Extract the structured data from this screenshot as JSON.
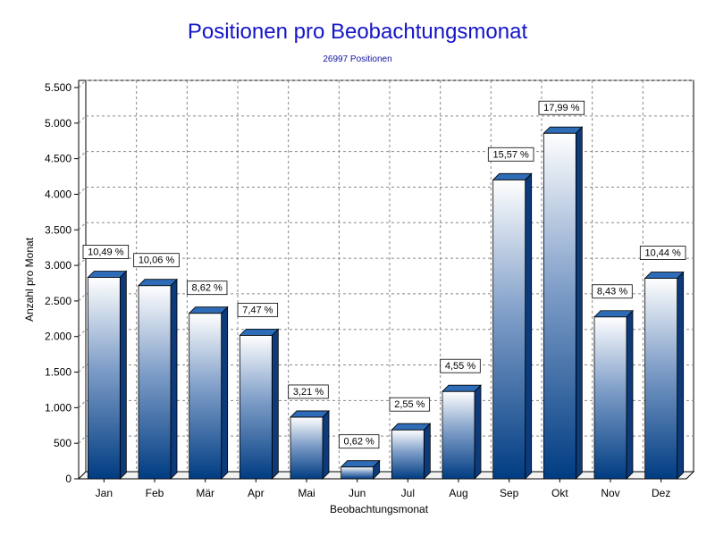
{
  "chart_data": {
    "type": "bar",
    "title": "Positionen pro Beobachtungsmonat",
    "subtitle": "26997 Positionen",
    "xlabel": "Beobachtungsmonat",
    "ylabel": "Anzahl pro Monat",
    "categories": [
      "Jan",
      "Feb",
      "Mär",
      "Apr",
      "Mai",
      "Jun",
      "Jul",
      "Aug",
      "Sep",
      "Okt",
      "Nov",
      "Dez"
    ],
    "values": [
      2832,
      2716,
      2327,
      2017,
      867,
      167,
      688,
      1228,
      4203,
      4857,
      2276,
      2818
    ],
    "data_labels": [
      "10,49 %",
      "10,06 %",
      "8,62 %",
      "7,47 %",
      "3,21 %",
      "0,62 %",
      "2,55 %",
      "4,55 %",
      "15,57 %",
      "17,99 %",
      "8,43 %",
      "10,44 %"
    ],
    "ylim": [
      0,
      5500
    ],
    "yticks": [
      0,
      500,
      1000,
      1500,
      2000,
      2500,
      3000,
      3500,
      4000,
      4500,
      5000,
      5500
    ],
    "ytick_labels": [
      "0",
      "500",
      "1.000",
      "1.500",
      "2.000",
      "2.500",
      "3.000",
      "3.500",
      "4.000",
      "4.500",
      "5.000",
      "5.500"
    ],
    "grid": true,
    "legend": "none",
    "colors": {
      "title": "#1414c8",
      "subtitle": "#1414a0",
      "bar_top": "#ffffff",
      "bar_bottom": "#003c82",
      "bar_cap": "#2f6cb8",
      "bar_side": "#0c3a7a",
      "grid": "#888888"
    }
  }
}
